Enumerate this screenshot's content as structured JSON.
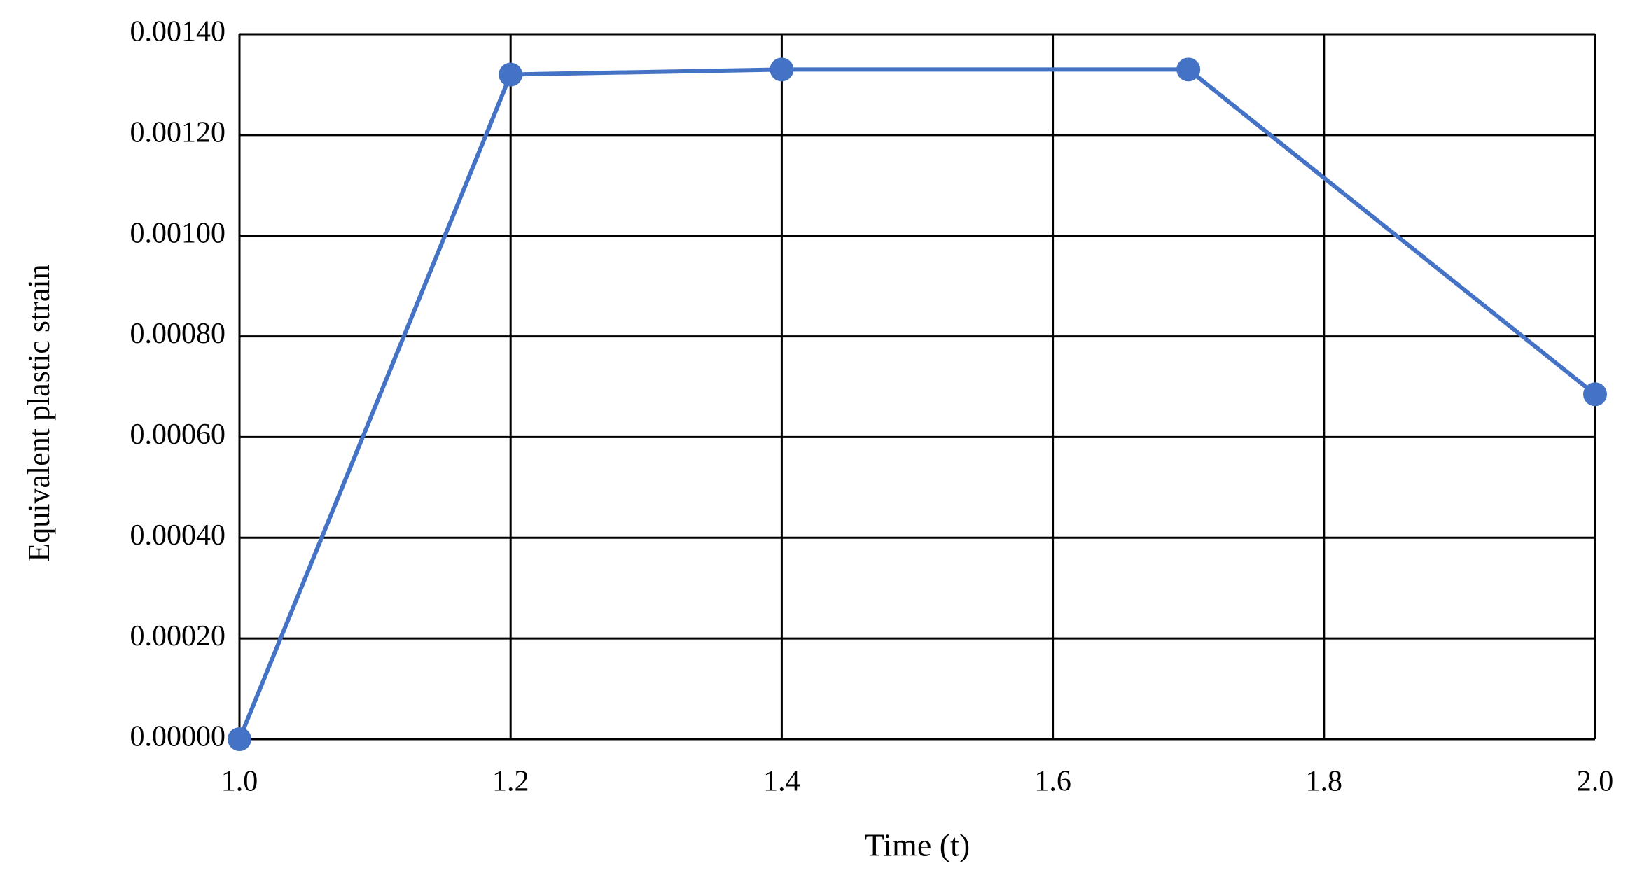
{
  "chart_data": {
    "type": "line",
    "x_label": "Time (t)",
    "y_label": "Equivalent plastic strain",
    "x": [
      1.0,
      1.2,
      1.4,
      1.7,
      2.0
    ],
    "series": [
      {
        "color": "#4472c4",
        "values": [
          0,
          0.00132,
          0.00133,
          0.00133,
          0.000685
        ]
      }
    ],
    "xlim": [
      1.0,
      2.0
    ],
    "xticks": [
      {
        "value": 1.0,
        "label": "1.0"
      },
      1.2,
      1.4,
      1.6,
      1.8,
      {
        "value": 2.0,
        "label": "2.0"
      }
    ],
    "ylim": [
      0,
      0.0014
    ],
    "yticks": [
      {
        "value": 0,
        "label": "0.00000"
      },
      {
        "value": 0.0002,
        "label": "0.00020"
      },
      {
        "value": 0.0004,
        "label": "0.00040"
      },
      {
        "value": 0.0006,
        "label": "0.00060"
      },
      {
        "value": 0.0008,
        "label": "0.00080"
      },
      {
        "value": 0.001,
        "label": "0.00100"
      },
      {
        "value": 0.0012,
        "label": "0.00120"
      },
      {
        "value": 0.0014,
        "label": "0.00140"
      }
    ],
    "grid": true
  }
}
